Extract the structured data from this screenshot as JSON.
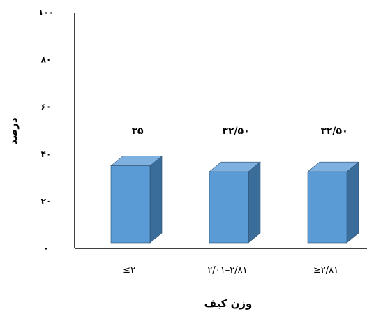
{
  "chart_data": {
    "type": "bar",
    "categories": [
      "≤۲",
      "۲/۰۱–۲/۸۱",
      "≥۲/۸۱"
    ],
    "values": [
      35,
      32.5,
      32.5
    ],
    "data_labels": [
      "۳۵",
      "۳۲/۵۰",
      "۳۲/۵۰"
    ],
    "xlabel": "وزن کیف",
    "ylabel": "درصد",
    "ylim": [
      0,
      100
    ],
    "y_ticks": [
      0,
      20,
      40,
      60,
      80,
      100
    ],
    "y_tick_labels": [
      "۰",
      "۲۰",
      "۴۰",
      "۶۰",
      "۸۰",
      "۱۰۰"
    ],
    "style": "3d-column",
    "grid": false,
    "colors": {
      "bar_front": "#5b9bd5",
      "bar_side": "#3a6d99",
      "bar_top": "#7fb1e0",
      "bar_edge": "#2c4d6e",
      "axis": "#000000"
    }
  }
}
